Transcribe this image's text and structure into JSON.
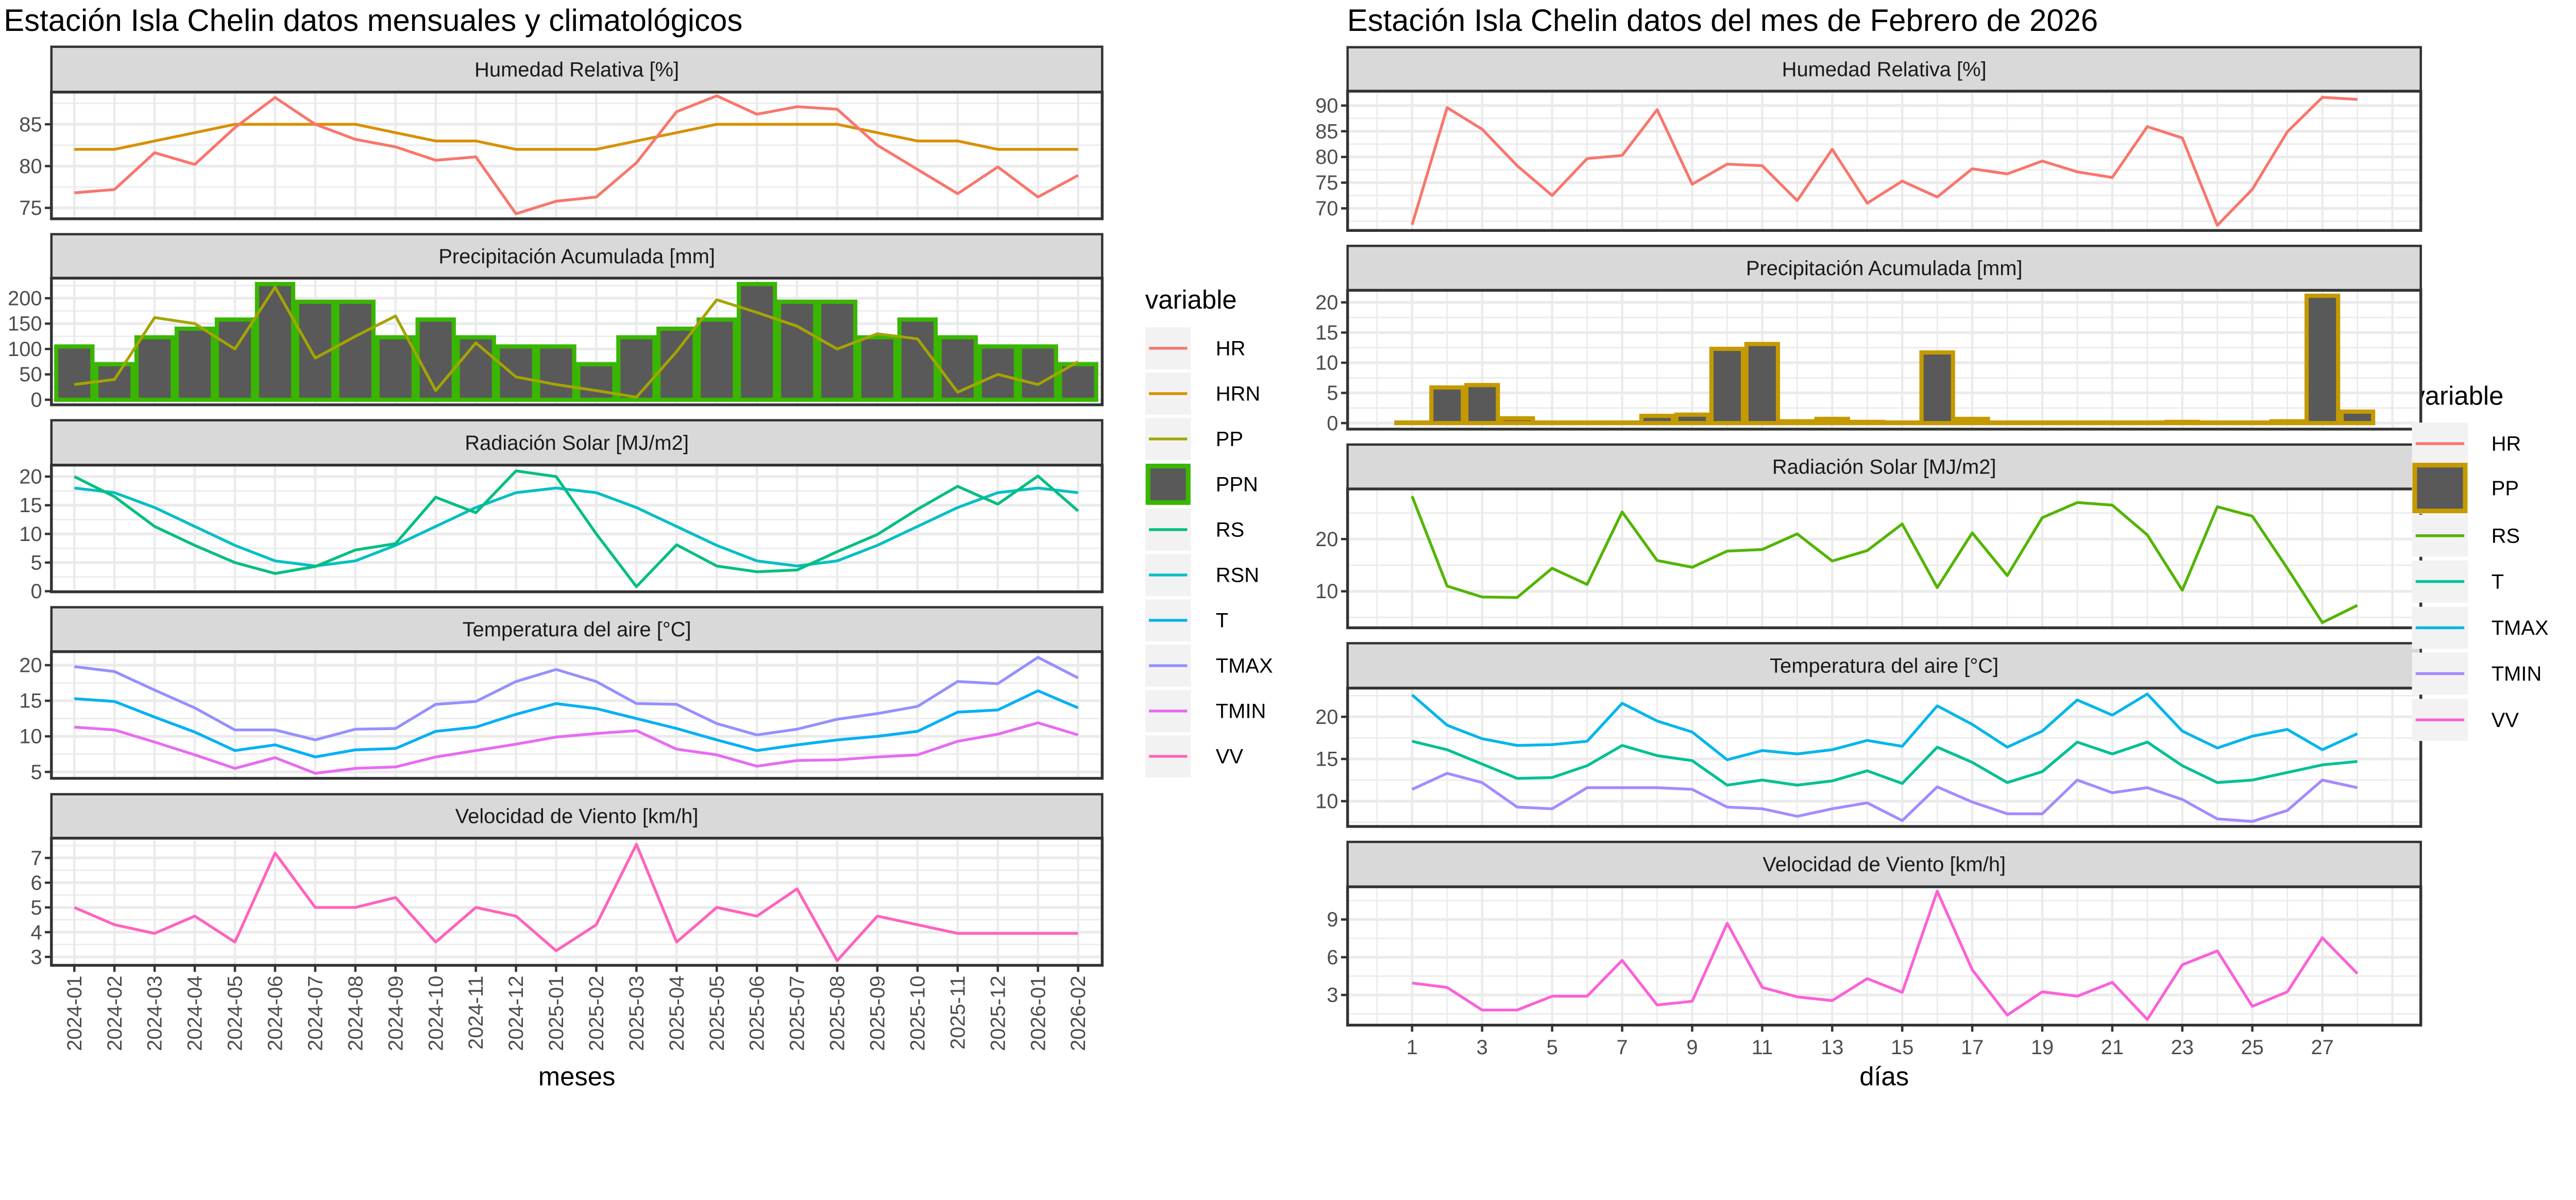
{
  "chart_data": [
    {
      "type": "line",
      "title": "Estación Isla Chelin datos mensuales y climatológicos",
      "xlabel": "meses",
      "x": [
        "2024-01",
        "2024-02",
        "2024-03",
        "2024-04",
        "2024-05",
        "2024-06",
        "2024-07",
        "2024-08",
        "2024-09",
        "2024-10",
        "2024-11",
        "2024-12",
        "2025-01",
        "2025-02",
        "2025-03",
        "2025-04",
        "2025-05",
        "2025-06",
        "2025-07",
        "2025-08",
        "2025-09",
        "2025-10",
        "2025-11",
        "2025-12",
        "2026-01",
        "2026-02"
      ],
      "grid": true,
      "legend": {
        "title": "variable",
        "placement": "right",
        "items": [
          {
            "name": "HR",
            "color": "#F8766D",
            "key": "line"
          },
          {
            "name": "HRN",
            "color": "#D89000",
            "key": "line"
          },
          {
            "name": "PP",
            "color": "#A3A500",
            "key": "line"
          },
          {
            "name": "PPN",
            "color": "#39B600",
            "fill": "#595959",
            "key": "bar"
          },
          {
            "name": "RS",
            "color": "#00BF7D",
            "key": "line"
          },
          {
            "name": "RSN",
            "color": "#00BFC4",
            "key": "line"
          },
          {
            "name": "T",
            "color": "#00B0F6",
            "key": "line"
          },
          {
            "name": "TMAX",
            "color": "#9590FF",
            "key": "line"
          },
          {
            "name": "TMIN",
            "color": "#E76BF3",
            "key": "line"
          },
          {
            "name": "VV",
            "color": "#FF62BC",
            "key": "line"
          }
        ]
      },
      "panels": [
        {
          "title": "Humedad Relativa [%]",
          "ylim": [
            73.7,
            88.85
          ],
          "yticks": [
            75,
            80,
            85
          ],
          "series": [
            {
              "name": "HRN",
              "type": "line",
              "values": [
                82,
                82,
                83,
                84,
                85,
                85,
                85,
                85,
                84,
                83,
                83,
                82,
                82,
                82,
                83,
                84,
                85,
                85,
                85,
                85,
                84,
                83,
                83,
                82,
                82,
                82
              ]
            },
            {
              "name": "HR",
              "type": "line",
              "values": [
                76.8,
                77.2,
                81.6,
                80.2,
                84.6,
                88.2,
                85.0,
                83.2,
                82.3,
                80.7,
                81.1,
                74.3,
                75.8,
                76.3,
                80.4,
                86.5,
                88.4,
                86.2,
                87.1,
                86.8,
                82.5,
                79.6,
                76.7,
                79.9,
                76.3,
                78.9
              ]
            }
          ]
        },
        {
          "title": "Precipitación Acumulada [mm]",
          "ylim": [
            -10,
            239.6
          ],
          "yticks": [
            0,
            50,
            100,
            150,
            200
          ],
          "series": [
            {
              "name": "PPN",
              "type": "bar",
              "values": [
                105,
                70,
                123,
                140,
                158,
                228,
                193,
                193,
                123,
                158,
                123,
                105,
                105,
                70,
                123,
                140,
                158,
                228,
                193,
                193,
                123,
                158,
                123,
                105,
                105,
                70
              ]
            },
            {
              "name": "PP",
              "type": "line",
              "values": [
                30,
                40,
                162,
                150,
                100,
                222,
                82,
                125,
                165,
                18,
                112,
                45,
                30,
                18,
                5,
                95,
                197,
                172,
                145,
                100,
                130,
                120,
                15,
                50,
                30,
                75
              ]
            }
          ]
        },
        {
          "title": "Radiación Solar [MJ/m2]",
          "ylim": [
            -0.1,
            22.0
          ],
          "yticks": [
            0,
            5,
            10,
            15,
            20
          ],
          "series": [
            {
              "name": "RSN",
              "type": "line",
              "values": [
                18,
                17.2,
                14.6,
                11.3,
                8,
                5.3,
                4.4,
                5.3,
                8,
                11.3,
                14.6,
                17.2,
                18,
                17.2,
                14.6,
                11.3,
                8,
                5.3,
                4.4,
                5.3,
                8,
                11.3,
                14.6,
                17.2,
                18,
                17.2
              ]
            },
            {
              "name": "RS",
              "type": "line",
              "values": [
                20,
                16.5,
                11.3,
                8,
                5,
                3.1,
                4.3,
                7.2,
                8.3,
                16.4,
                13.7,
                21,
                20,
                10,
                0.8,
                8.1,
                4.4,
                3.4,
                3.7,
                6.9,
                9.9,
                14.3,
                18.3,
                15.2,
                20.1,
                14
              ]
            }
          ]
        },
        {
          "title": "Temperatura del aire [°C]",
          "ylim": [
            4.1,
            21.9
          ],
          "yticks": [
            5,
            10,
            15,
            20
          ],
          "series": [
            {
              "name": "TMAX",
              "type": "line",
              "values": [
                19.8,
                19.1,
                16.5,
                14.0,
                10.9,
                10.9,
                9.5,
                11.0,
                11.1,
                14.5,
                14.9,
                17.7,
                19.4,
                17.7,
                14.6,
                14.5,
                11.8,
                10.2,
                11.0,
                12.4,
                13.2,
                14.2,
                17.7,
                17.4,
                21.1,
                18.2
              ]
            },
            {
              "name": "T",
              "type": "line",
              "values": [
                15.3,
                14.9,
                12.7,
                10.6,
                8.0,
                8.8,
                7.1,
                8.1,
                8.3,
                10.7,
                11.3,
                13.1,
                14.6,
                13.9,
                12.5,
                11.1,
                9.5,
                8.0,
                8.8,
                9.5,
                10.0,
                10.7,
                13.4,
                13.7,
                16.4,
                14.0
              ]
            },
            {
              "name": "TMIN",
              "type": "line",
              "values": [
                11.3,
                10.9,
                9.2,
                7.4,
                5.5,
                7.0,
                4.8,
                5.5,
                5.7,
                7.1,
                8.0,
                8.9,
                9.9,
                10.4,
                10.8,
                8.2,
                7.4,
                5.8,
                6.6,
                6.7,
                7.1,
                7.4,
                9.3,
                10.3,
                11.9,
                10.2
              ]
            }
          ]
        },
        {
          "title": "Velocidad de Viento [km/h]",
          "ylim": [
            2.66,
            7.8
          ],
          "yticks": [
            3,
            4,
            5,
            6,
            7
          ],
          "series": [
            {
              "name": "VV",
              "type": "line",
              "values": [
                5.0,
                4.3,
                3.95,
                4.65,
                3.6,
                7.2,
                5.0,
                5.0,
                5.4,
                3.6,
                5.0,
                4.65,
                3.25,
                4.3,
                7.55,
                3.6,
                5.0,
                4.65,
                5.75,
                2.85,
                4.65,
                4.3,
                3.95,
                3.95,
                3.95,
                3.95
              ]
            }
          ]
        }
      ]
    },
    {
      "type": "line",
      "title": "Estación Isla Chelin datos del mes de Febrero de 2026",
      "xlabel": "días",
      "x": [
        1,
        2,
        3,
        4,
        5,
        6,
        7,
        8,
        9,
        10,
        11,
        12,
        13,
        14,
        15,
        16,
        17,
        18,
        19,
        20,
        21,
        22,
        23,
        24,
        25,
        26,
        27,
        28
      ],
      "xticks": [
        1,
        3,
        5,
        7,
        9,
        11,
        13,
        15,
        17,
        19,
        21,
        23,
        25,
        27
      ],
      "grid": true,
      "legend": {
        "title": "variable",
        "placement": "right",
        "items": [
          {
            "name": "HR",
            "color": "#F8766D",
            "key": "line"
          },
          {
            "name": "PP",
            "color": "#C49A00",
            "fill": "#595959",
            "key": "bar"
          },
          {
            "name": "RS",
            "color": "#53B400",
            "key": "line"
          },
          {
            "name": "T",
            "color": "#00C094",
            "key": "line"
          },
          {
            "name": "TMAX",
            "color": "#00B6EB",
            "key": "line"
          },
          {
            "name": "TMIN",
            "color": "#A58AFF",
            "key": "line"
          },
          {
            "name": "VV",
            "color": "#FB61D7",
            "key": "line"
          }
        ]
      },
      "panels": [
        {
          "title": "Humedad Relativa [%]",
          "ylim": [
            65.7,
            92.8
          ],
          "yticks": [
            70,
            75,
            80,
            85,
            90
          ],
          "series": [
            {
              "name": "HR",
              "type": "line",
              "values": [
                66.8,
                89.6,
                85.4,
                78.3,
                72.5,
                79.7,
                80.3,
                89.2,
                74.7,
                78.6,
                78.3,
                71.5,
                81.5,
                71.0,
                75.3,
                72.2,
                77.7,
                76.7,
                79.2,
                77.1,
                76.0,
                85.9,
                83.7,
                66.7,
                73.7,
                84.9,
                91.6,
                91.2
              ]
            }
          ]
        },
        {
          "title": "Precipitación Acumulada [mm]",
          "ylim": [
            -1.0,
            22.0
          ],
          "yticks": [
            0,
            5,
            10,
            15,
            20
          ],
          "series": [
            {
              "name": "PP",
              "type": "bar",
              "values": [
                0.1,
                5.9,
                6.3,
                0.8,
                0.1,
                0.1,
                0.1,
                1.2,
                1.4,
                12.3,
                13.1,
                0.3,
                0.7,
                0.2,
                0.1,
                11.7,
                0.7,
                0.1,
                0.1,
                0.1,
                0.1,
                0.1,
                0.2,
                0.1,
                0.1,
                0.3,
                21.1,
                1.9
              ]
            }
          ]
        },
        {
          "title": "Radiación Solar [MJ/m2]",
          "ylim": [
            3.0,
            29.6
          ],
          "yticks": [
            10,
            20
          ],
          "series": [
            {
              "name": "RS",
              "type": "line",
              "values": [
                28.2,
                11.0,
                8.9,
                8.8,
                14.4,
                11.3,
                25.2,
                15.9,
                14.6,
                17.7,
                18.0,
                21.0,
                15.8,
                17.8,
                22.9,
                10.7,
                21.2,
                13.0,
                24.1,
                27.0,
                26.5,
                20.8,
                10.2,
                26.2,
                24.4,
                14.4,
                4.0,
                7.3
              ]
            }
          ]
        },
        {
          "title": "Temperatura del aire [°C]",
          "ylim": [
            7.0,
            23.4
          ],
          "yticks": [
            10,
            15,
            20
          ],
          "series": [
            {
              "name": "TMAX",
              "type": "line",
              "values": [
                22.6,
                19.0,
                17.4,
                16.6,
                16.7,
                17.1,
                21.6,
                19.5,
                18.2,
                14.9,
                16.0,
                15.6,
                16.1,
                17.2,
                16.5,
                21.3,
                19.1,
                16.4,
                18.3,
                22.0,
                20.2,
                22.7,
                18.3,
                16.3,
                17.7,
                18.5,
                16.1,
                18.0
              ]
            },
            {
              "name": "T",
              "type": "line",
              "values": [
                17.1,
                16.1,
                14.4,
                12.7,
                12.8,
                14.2,
                16.6,
                15.4,
                14.8,
                11.9,
                12.5,
                11.9,
                12.4,
                13.6,
                12.1,
                16.4,
                14.6,
                12.2,
                13.5,
                17.0,
                15.6,
                17.0,
                14.2,
                12.2,
                12.5,
                13.4,
                14.3,
                14.7
              ]
            },
            {
              "name": "TMIN",
              "type": "line",
              "values": [
                11.4,
                13.3,
                12.2,
                9.3,
                9.1,
                11.6,
                11.6,
                11.6,
                11.4,
                9.3,
                9.1,
                8.2,
                9.1,
                9.8,
                7.7,
                11.7,
                9.9,
                8.5,
                8.5,
                12.5,
                11.0,
                11.6,
                10.2,
                7.9,
                7.6,
                8.9,
                12.5,
                11.6
              ]
            }
          ]
        },
        {
          "title": "Velocidad de Viento [km/h]",
          "ylim": [
            0.6,
            11.6
          ],
          "yticks": [
            3,
            6,
            9
          ],
          "series": [
            {
              "name": "VV",
              "type": "line",
              "values": [
                3.95,
                3.6,
                1.8,
                1.8,
                2.9,
                2.9,
                5.75,
                2.2,
                2.5,
                8.7,
                3.6,
                2.85,
                2.55,
                4.3,
                3.2,
                11.25,
                5.0,
                1.4,
                3.25,
                2.9,
                4.0,
                1.05,
                5.4,
                6.5,
                2.1,
                3.25,
                7.55,
                4.7
              ]
            }
          ]
        }
      ]
    }
  ]
}
